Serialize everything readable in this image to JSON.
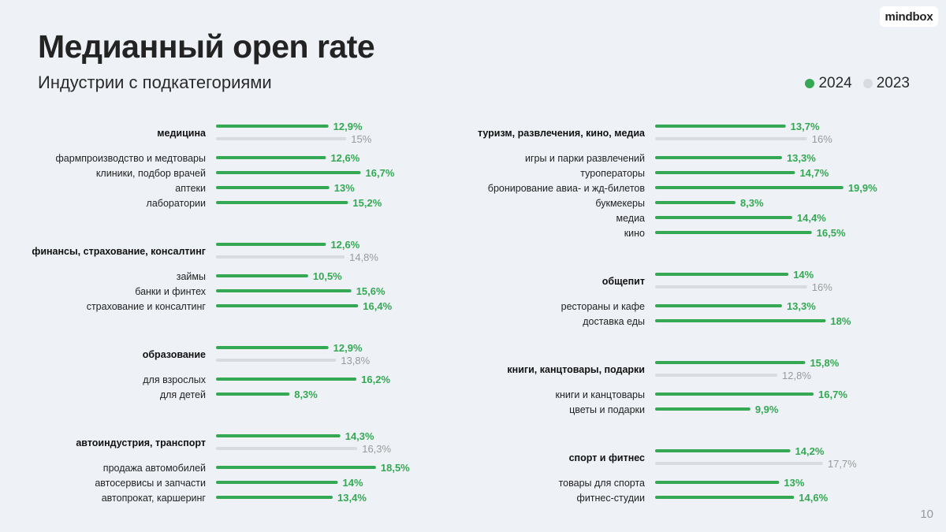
{
  "header": {
    "title": "Медианный open rate",
    "subtitle": "Индустрии с подкатегориями",
    "logo": "mindbox",
    "page_number": "10"
  },
  "legend": [
    {
      "label": "2024",
      "color": "#34a853"
    },
    {
      "label": "2023",
      "color": "#d9dbe0"
    }
  ],
  "colors": {
    "s2024": "#34a853",
    "s2023": "#d9dbe0"
  },
  "chart_data": {
    "type": "bar",
    "orientation": "horizontal",
    "title": "Медианный open rate",
    "subtitle": "Индустрии с подкатегориями",
    "unit": "%",
    "series_names": [
      "2024",
      "2023"
    ],
    "groups": [
      {
        "column": "left",
        "name": "медицина",
        "v2024": 12.9,
        "l2024": "12,9%",
        "v2023": 15,
        "l2023": "15%",
        "items": [
          {
            "label": "фармпроизводство и медтовары",
            "value": 12.6,
            "text": "12,6%"
          },
          {
            "label": "клиники, подбор врачей",
            "value": 16.7,
            "text": "16,7%"
          },
          {
            "label": "аптеки",
            "value": 13,
            "text": "13%"
          },
          {
            "label": "лаборатории",
            "value": 15.2,
            "text": "15,2%"
          }
        ]
      },
      {
        "column": "left",
        "name": "финансы, страхование, консалтинг",
        "v2024": 12.6,
        "l2024": "12,6%",
        "v2023": 14.8,
        "l2023": "14,8%",
        "items": [
          {
            "label": "займы",
            "value": 10.5,
            "text": "10,5%"
          },
          {
            "label": "банки и финтех",
            "value": 15.6,
            "text": "15,6%"
          },
          {
            "label": "страхование и консалтинг",
            "value": 16.4,
            "text": "16,4%"
          }
        ]
      },
      {
        "column": "left",
        "name": "образование",
        "v2024": 12.9,
        "l2024": "12,9%",
        "v2023": 13.8,
        "l2023": "13,8%",
        "items": [
          {
            "label": "для взрослых",
            "value": 16.2,
            "text": "16,2%"
          },
          {
            "label": "для детей",
            "value": 8.3,
            "text": "8,3%"
          }
        ]
      },
      {
        "column": "left",
        "name": "автоиндустрия, транспорт",
        "v2024": 14.3,
        "l2024": "14,3%",
        "v2023": 16.3,
        "l2023": "16,3%",
        "items": [
          {
            "label": "продажа автомобилей",
            "value": 18.5,
            "text": "18,5%"
          },
          {
            "label": "автосервисы и запчасти",
            "value": 14,
            "text": "14%"
          },
          {
            "label": "автопрокат, каршеринг",
            "value": 13.4,
            "text": "13,4%"
          }
        ]
      },
      {
        "column": "right",
        "name": "туризм, развлечения, кино, медиа",
        "v2024": 13.7,
        "l2024": "13,7%",
        "v2023": 16,
        "l2023": "16%",
        "items": [
          {
            "label": "игры и парки развлечений",
            "value": 13.3,
            "text": "13,3%"
          },
          {
            "label": "туроператоры",
            "value": 14.7,
            "text": "14,7%"
          },
          {
            "label": "бронирование авиа- и жд-билетов",
            "value": 19.9,
            "text": "19,9%"
          },
          {
            "label": "букмекеры",
            "value": 8.3,
            "text": "8,3%"
          },
          {
            "label": "медиа",
            "value": 14.4,
            "text": "14,4%"
          },
          {
            "label": "кино",
            "value": 16.5,
            "text": "16,5%"
          }
        ]
      },
      {
        "column": "right",
        "name": "общепит",
        "v2024": 14,
        "l2024": "14%",
        "v2023": 16,
        "l2023": "16%",
        "items": [
          {
            "label": "рестораны и кафе",
            "value": 13.3,
            "text": "13,3%"
          },
          {
            "label": "доставка еды",
            "value": 18,
            "text": "18%"
          }
        ]
      },
      {
        "column": "right",
        "name": "книги, канцтовары, подарки",
        "v2024": 15.8,
        "l2024": "15,8%",
        "v2023": 12.8,
        "l2023": "12,8%",
        "items": [
          {
            "label": "книги и канцтовары",
            "value": 16.7,
            "text": "16,7%"
          },
          {
            "label": "цветы и подарки",
            "value": 9.9,
            "text": "9,9%"
          }
        ]
      },
      {
        "column": "right",
        "name": "спорт и фитнес",
        "v2024": 14.2,
        "l2024": "14,2%",
        "v2023": 17.7,
        "l2023": "17,7%",
        "items": [
          {
            "label": "товары для спорта",
            "value": 13,
            "text": "13%"
          },
          {
            "label": "фитнес-студии",
            "value": 14.6,
            "text": "14,6%"
          }
        ]
      }
    ]
  }
}
